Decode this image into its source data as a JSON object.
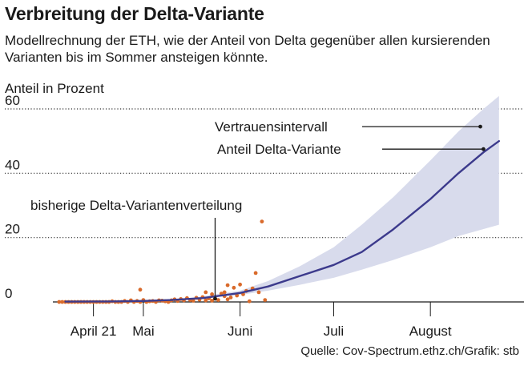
{
  "header": {
    "title": "Verbreitung der Delta-Variante",
    "subtitle": "Modellrechnung der ETH, wie der Anteil von Delta gegenüber allen kursierenden Varianten bis im Sommer ansteigen könnte."
  },
  "footer": {
    "source": "Quelle: Cov-Spectrum.ethz.ch/Grafik: stb"
  },
  "colors": {
    "band": "#d8dbec",
    "line": "#3c3a8c",
    "dots": "#d96a2b",
    "grid": "#333333"
  },
  "chart_data": {
    "type": "line",
    "title": "Verbreitung der Delta-Variante",
    "ylabel": "Anteil in Prozent",
    "xlabel": "",
    "x_axis_type": "date",
    "xlim": [
      "2021-04-02",
      "2021-08-31"
    ],
    "ylim": [
      0,
      60
    ],
    "y_ticks": [
      0,
      20,
      40,
      60
    ],
    "x_ticks": [
      {
        "date": "2021-04-15",
        "label": "April 21"
      },
      {
        "date": "2021-05-01",
        "label": "Mai"
      },
      {
        "date": "2021-06-01",
        "label": "Juni"
      },
      {
        "date": "2021-07-01",
        "label": "Juli"
      },
      {
        "date": "2021-08-01",
        "label": "August"
      }
    ],
    "grid": "horizontal dotted at 20, 40, 60",
    "series": [
      {
        "name": "Anteil Delta-Variante",
        "kind": "line",
        "points": [
          [
            "2021-04-06",
            0.1
          ],
          [
            "2021-04-20",
            0.15
          ],
          [
            "2021-05-01",
            0.3
          ],
          [
            "2021-05-10",
            0.6
          ],
          [
            "2021-05-20",
            1.2
          ],
          [
            "2021-06-01",
            2.8
          ],
          [
            "2021-06-10",
            4.8
          ],
          [
            "2021-06-20",
            8.0
          ],
          [
            "2021-07-01",
            11.5
          ],
          [
            "2021-07-10",
            15.5
          ],
          [
            "2021-07-20",
            22.5
          ],
          [
            "2021-08-01",
            32.0
          ],
          [
            "2021-08-10",
            40.0
          ],
          [
            "2021-08-18",
            46.5
          ],
          [
            "2021-08-23",
            50.0
          ]
        ]
      },
      {
        "name": "Vertrauensintervall",
        "kind": "band",
        "lower": [
          [
            "2021-05-15",
            0.8
          ],
          [
            "2021-06-01",
            2.2
          ],
          [
            "2021-06-10",
            3.5
          ],
          [
            "2021-06-20",
            5.3
          ],
          [
            "2021-07-01",
            7.5
          ],
          [
            "2021-07-10",
            10.0
          ],
          [
            "2021-07-20",
            13.0
          ],
          [
            "2021-08-01",
            17.0
          ],
          [
            "2021-08-10",
            20.5
          ],
          [
            "2021-08-23",
            24.0
          ]
        ],
        "upper": [
          [
            "2021-05-15",
            1.0
          ],
          [
            "2021-06-01",
            3.5
          ],
          [
            "2021-06-10",
            6.5
          ],
          [
            "2021-06-20",
            11.0
          ],
          [
            "2021-07-01",
            17.0
          ],
          [
            "2021-07-10",
            24.0
          ],
          [
            "2021-07-20",
            32.5
          ],
          [
            "2021-08-01",
            44.0
          ],
          [
            "2021-08-10",
            53.0
          ],
          [
            "2021-08-18",
            60.0
          ],
          [
            "2021-08-23",
            64.0
          ]
        ]
      },
      {
        "name": "bisherige Delta-Variantenverteilung",
        "kind": "scatter",
        "points": [
          [
            "2021-04-04",
            0
          ],
          [
            "2021-04-05",
            0
          ],
          [
            "2021-04-06",
            0
          ],
          [
            "2021-04-07",
            0
          ],
          [
            "2021-04-08",
            0
          ],
          [
            "2021-04-09",
            0
          ],
          [
            "2021-04-10",
            0
          ],
          [
            "2021-04-11",
            0
          ],
          [
            "2021-04-12",
            0
          ],
          [
            "2021-04-13",
            0
          ],
          [
            "2021-04-14",
            0
          ],
          [
            "2021-04-15",
            0
          ],
          [
            "2021-04-16",
            0
          ],
          [
            "2021-04-17",
            0
          ],
          [
            "2021-04-18",
            0
          ],
          [
            "2021-04-19",
            0
          ],
          [
            "2021-04-20",
            0
          ],
          [
            "2021-04-21",
            0.2
          ],
          [
            "2021-04-22",
            0
          ],
          [
            "2021-04-23",
            0
          ],
          [
            "2021-04-24",
            0
          ],
          [
            "2021-04-25",
            0.3
          ],
          [
            "2021-04-26",
            0
          ],
          [
            "2021-04-27",
            0.5
          ],
          [
            "2021-04-28",
            0
          ],
          [
            "2021-04-29",
            0.3
          ],
          [
            "2021-04-30",
            0
          ],
          [
            "2021-05-01",
            0.6
          ],
          [
            "2021-05-02",
            0
          ],
          [
            "2021-05-03",
            0.2
          ],
          [
            "2021-05-04",
            0.3
          ],
          [
            "2021-05-05",
            0
          ],
          [
            "2021-05-06",
            0.5
          ],
          [
            "2021-05-07",
            0.4
          ],
          [
            "2021-05-08",
            0.2
          ],
          [
            "2021-05-09",
            0
          ],
          [
            "2021-05-10",
            0.5
          ],
          [
            "2021-05-11",
            0.8
          ],
          [
            "2021-05-12",
            0.3
          ],
          [
            "2021-05-13",
            0.9
          ],
          [
            "2021-05-14",
            0.5
          ],
          [
            "2021-05-15",
            1.2
          ],
          [
            "2021-05-16",
            0.6
          ],
          [
            "2021-05-17",
            0.4
          ],
          [
            "2021-05-18",
            1.3
          ],
          [
            "2021-05-19",
            0.7
          ],
          [
            "2021-05-20",
            1.5
          ],
          [
            "2021-05-21",
            0.5
          ],
          [
            "2021-05-22",
            1.1
          ],
          [
            "2021-05-23",
            0.4
          ],
          [
            "2021-05-24",
            1.0
          ],
          [
            "2021-05-25",
            0.6
          ],
          [
            "2021-05-26",
            2.6
          ],
          [
            "2021-05-27",
            1.8
          ],
          [
            "2021-05-28",
            0.8
          ],
          [
            "2021-05-29",
            1.4
          ],
          [
            "2021-05-30",
            4.4
          ],
          [
            "2021-05-31",
            2.0
          ],
          [
            "2021-06-01",
            5.4
          ],
          [
            "2021-06-02",
            2.4
          ],
          [
            "2021-06-03",
            3.4
          ],
          [
            "2021-06-04",
            0.2
          ],
          [
            "2021-06-05",
            4.2
          ],
          [
            "2021-06-06",
            9.0
          ],
          [
            "2021-06-07",
            3.0
          ],
          [
            "2021-06-08",
            25.0
          ],
          [
            "2021-06-09",
            0.6
          ],
          [
            "2021-04-30",
            3.8
          ],
          [
            "2021-05-21",
            3.0
          ],
          [
            "2021-05-23",
            2.4
          ],
          [
            "2021-05-27",
            3.0
          ],
          [
            "2021-05-28",
            5.2
          ]
        ]
      }
    ],
    "annotations": [
      {
        "text": "Vertrauensintervall",
        "target_date": "2021-08-17",
        "target_y": 54.5
      },
      {
        "text": "Anteil Delta-Variante",
        "target_date": "2021-08-18",
        "target_y": 47.5
      },
      {
        "text": "bisherige Delta-Variantenverteilung",
        "target_date": "2021-05-24",
        "target_y": 1.0
      }
    ]
  }
}
